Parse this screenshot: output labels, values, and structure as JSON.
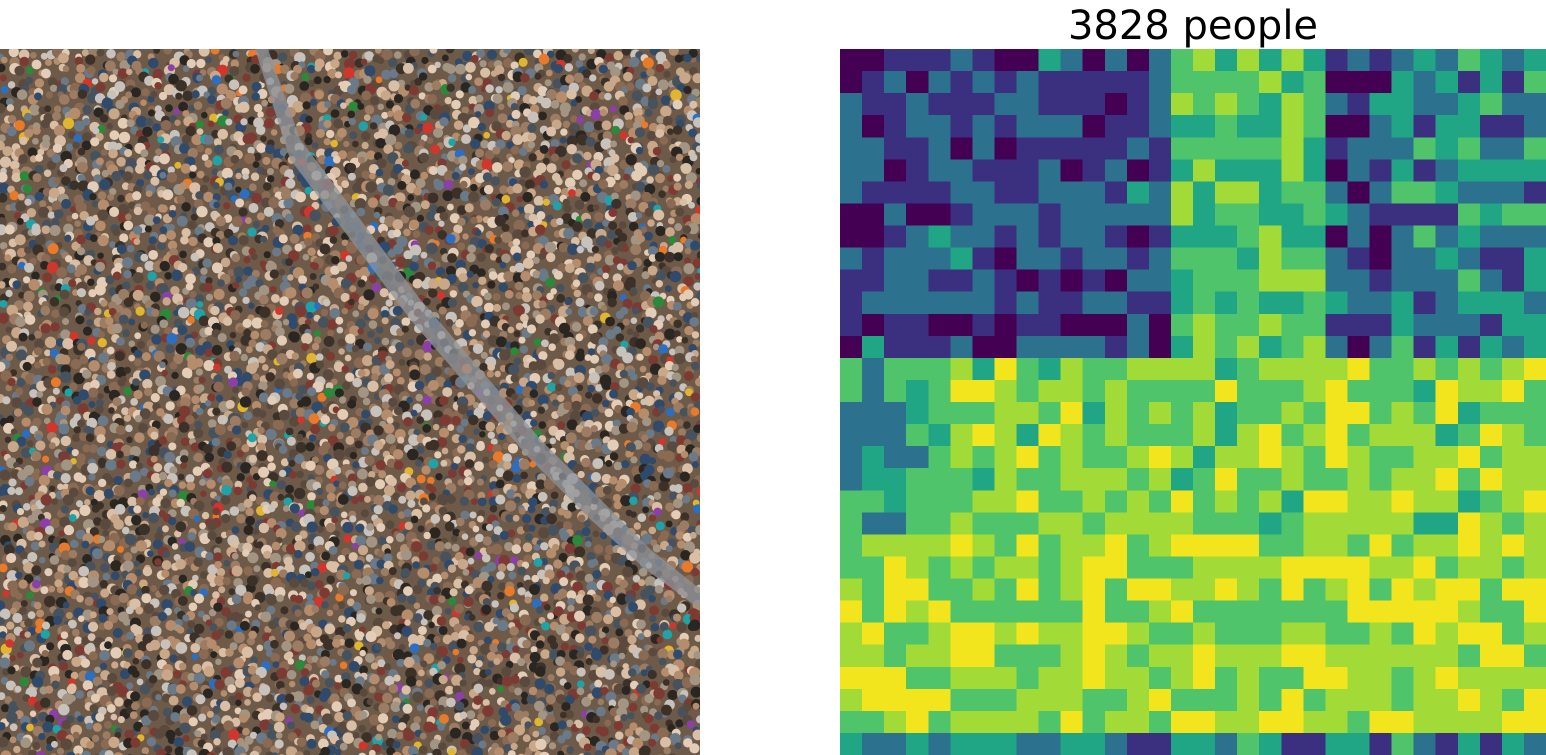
{
  "title": "3828 people",
  "image": {
    "kind": "crowd-photograph",
    "description_icon": "crowd-photo"
  },
  "density_map": {
    "colormap": "viridis",
    "grid_rows": 32,
    "grid_cols": 32
  }
}
